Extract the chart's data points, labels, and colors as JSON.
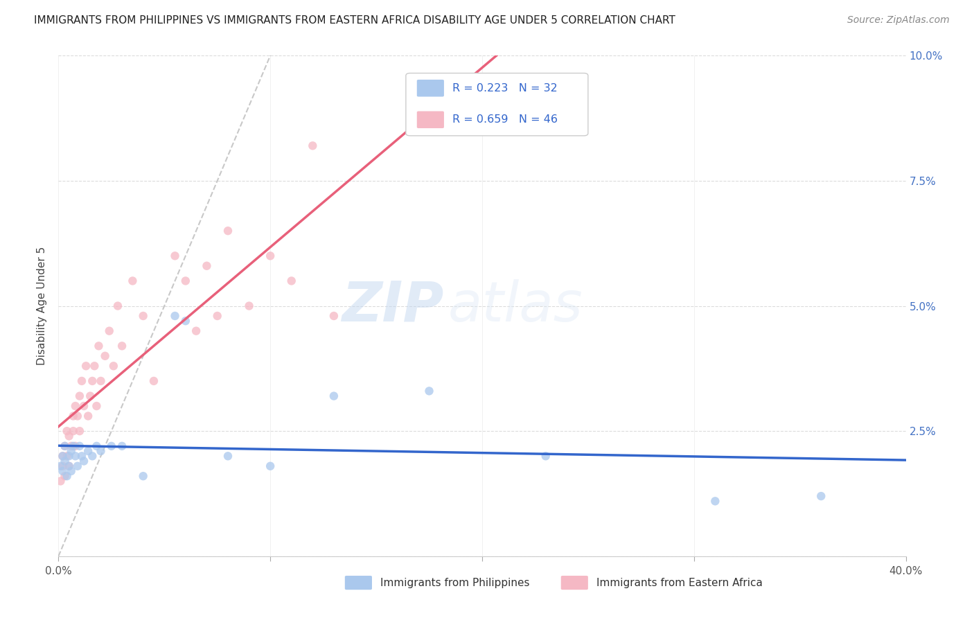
{
  "title": "IMMIGRANTS FROM PHILIPPINES VS IMMIGRANTS FROM EASTERN AFRICA DISABILITY AGE UNDER 5 CORRELATION CHART",
  "source": "Source: ZipAtlas.com",
  "ylabel": "Disability Age Under 5",
  "yticks": [
    "",
    "2.5%",
    "5.0%",
    "7.5%",
    "10.0%"
  ],
  "ytick_vals": [
    0.0,
    0.025,
    0.05,
    0.075,
    0.1
  ],
  "legend_label1": "Immigrants from Philippines",
  "legend_label2": "Immigrants from Eastern Africa",
  "R1": 0.223,
  "N1": 32,
  "R2": 0.659,
  "N2": 46,
  "color1": "#aac8ed",
  "color2": "#f5b8c4",
  "line_color1": "#3366cc",
  "line_color2": "#e8607a",
  "diag_color": "#bbbbbb",
  "xlim": [
    0.0,
    0.4
  ],
  "ylim": [
    0.0,
    0.1
  ],
  "philippines_x": [
    0.001,
    0.002,
    0.002,
    0.003,
    0.003,
    0.004,
    0.005,
    0.005,
    0.006,
    0.006,
    0.007,
    0.008,
    0.009,
    0.01,
    0.011,
    0.012,
    0.014,
    0.016,
    0.018,
    0.02,
    0.025,
    0.03,
    0.04,
    0.055,
    0.06,
    0.08,
    0.1,
    0.13,
    0.175,
    0.23,
    0.31,
    0.36
  ],
  "philippines_y": [
    0.018,
    0.02,
    0.017,
    0.022,
    0.019,
    0.016,
    0.02,
    0.018,
    0.021,
    0.017,
    0.022,
    0.02,
    0.018,
    0.022,
    0.02,
    0.019,
    0.021,
    0.02,
    0.022,
    0.021,
    0.022,
    0.022,
    0.016,
    0.048,
    0.047,
    0.02,
    0.018,
    0.032,
    0.033,
    0.02,
    0.011,
    0.012
  ],
  "eastern_africa_x": [
    0.001,
    0.002,
    0.002,
    0.003,
    0.003,
    0.004,
    0.004,
    0.005,
    0.005,
    0.006,
    0.007,
    0.007,
    0.008,
    0.008,
    0.009,
    0.01,
    0.01,
    0.011,
    0.012,
    0.013,
    0.014,
    0.015,
    0.016,
    0.017,
    0.018,
    0.019,
    0.02,
    0.022,
    0.024,
    0.026,
    0.028,
    0.03,
    0.035,
    0.04,
    0.045,
    0.055,
    0.06,
    0.065,
    0.07,
    0.075,
    0.08,
    0.09,
    0.1,
    0.11,
    0.12,
    0.13
  ],
  "eastern_africa_y": [
    0.015,
    0.018,
    0.02,
    0.016,
    0.022,
    0.02,
    0.025,
    0.018,
    0.024,
    0.022,
    0.028,
    0.025,
    0.03,
    0.022,
    0.028,
    0.032,
    0.025,
    0.035,
    0.03,
    0.038,
    0.028,
    0.032,
    0.035,
    0.038,
    0.03,
    0.042,
    0.035,
    0.04,
    0.045,
    0.038,
    0.05,
    0.042,
    0.055,
    0.048,
    0.035,
    0.06,
    0.055,
    0.045,
    0.058,
    0.048,
    0.065,
    0.05,
    0.06,
    0.055,
    0.082,
    0.048
  ],
  "watermark_zip": "ZIP",
  "watermark_atlas": "atlas",
  "background_color": "#ffffff",
  "grid_color": "#d8d8d8"
}
